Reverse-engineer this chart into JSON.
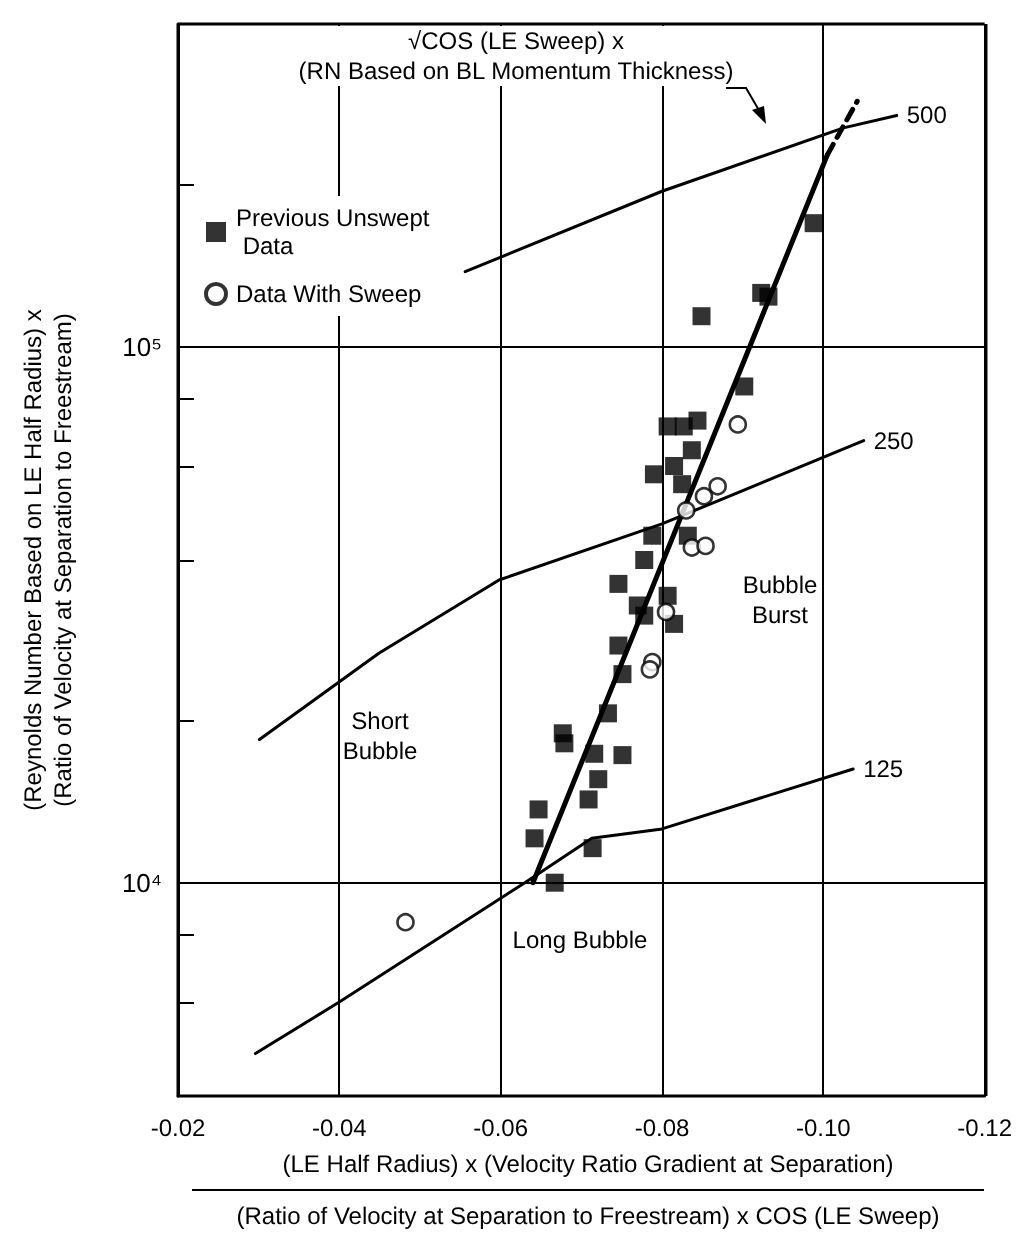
{
  "chart_data": {
    "type": "scatter",
    "xlabel": "(LE Half Radius) x (Velocity Ratio Gradient at Separation)\n(Ratio of Velocity at Separation to Freestream) x COS (LE Sweep)",
    "ylabel": "(Reynolds Number Based on LE Half Radius) x\n(Ratio of Velocity at Separation to Freestream)",
    "annotations": [
      "√COS (LE Sweep) x\n(RN Based on BL Momentum Thickness)",
      "Bubble\nBurst",
      "Short\nBubble",
      "Long Bubble"
    ],
    "xlim": [
      -0.02,
      -0.12
    ],
    "xticks": [
      {
        "value": -0.02,
        "label": "-0.02"
      },
      {
        "value": -0.04,
        "label": "-0.04"
      },
      {
        "value": -0.06,
        "label": "-0.06"
      },
      {
        "value": -0.08,
        "label": "-0.08"
      },
      {
        "value": -0.1,
        "label": "-0.10"
      },
      {
        "value": -0.12,
        "label": "-0.12"
      }
    ],
    "ylim": [
      4000,
      400000
    ],
    "yticks": [
      {
        "value": 6000,
        "label": null
      },
      {
        "value": 8000,
        "label": null
      },
      {
        "value": 10000,
        "label": "10⁴"
      },
      {
        "value": 20000,
        "label": null
      },
      {
        "value": 40000,
        "label": null
      },
      {
        "value": 60000,
        "label": null
      },
      {
        "value": 80000,
        "label": null
      },
      {
        "value": 100000,
        "label": "10⁵"
      },
      {
        "value": 200000,
        "label": null
      }
    ],
    "log": "y",
    "grid": true,
    "legend": "top left",
    "series": [
      {
        "name": "Previous Unswept Data",
        "marker": "square",
        "color": "#000000",
        "x": [
          -0.0849,
          -0.0923,
          -0.0932,
          -0.0988,
          -0.0902,
          -0.0807,
          -0.0827,
          -0.0844,
          -0.0837,
          -0.0815,
          -0.079,
          -0.0825,
          -0.0788,
          -0.0832,
          -0.0778,
          -0.0746,
          -0.0807,
          -0.077,
          -0.0815,
          -0.0778,
          -0.0746,
          -0.0751,
          -0.0733,
          -0.0677,
          -0.0679,
          -0.0716,
          -0.0751,
          -0.0721,
          -0.0709,
          -0.0647,
          -0.0642,
          -0.0714,
          -0.0667
        ],
        "values": [
          114000,
          126000,
          124000,
          170000,
          84300,
          71000,
          71000,
          72800,
          64100,
          59900,
          57800,
          55400,
          44400,
          44400,
          40000,
          36100,
          34300,
          32900,
          30400,
          31500,
          27700,
          24500,
          20700,
          19000,
          18200,
          17400,
          17300,
          15600,
          14300,
          13700,
          12100,
          11600,
          10000
        ]
      },
      {
        "name": "Data With Sweep",
        "marker": "circle",
        "color": "#000000",
        "x": [
          -0.0482,
          -0.0894,
          -0.0869,
          -0.0852,
          -0.083,
          -0.0837,
          -0.0854,
          -0.0805,
          -0.0788,
          -0.0785
        ],
        "values": [
          8440,
          71600,
          54900,
          52600,
          49500,
          42200,
          42500,
          32000,
          25800,
          25000
        ]
      },
      {
        "name": "500",
        "type": "line",
        "marker": "none",
        "color": "#000000",
        "x": [
          -0.0556,
          -0.08,
          -0.1025,
          -0.1091
        ],
        "values": [
          138000,
          195000,
          256000,
          270000
        ]
      },
      {
        "name": "250",
        "type": "line",
        "marker": "none",
        "color": "#000000",
        "x": [
          -0.0301,
          -0.0449,
          -0.0598,
          -0.08,
          -0.105
        ],
        "values": [
          18500,
          26800,
          36700,
          46700,
          66800
        ]
      },
      {
        "name": "125",
        "type": "line",
        "marker": "none",
        "color": "#000000",
        "x": [
          -0.0296,
          -0.04,
          -0.063,
          -0.0713,
          -0.08,
          -0.1037
        ],
        "values": [
          4800,
          5990,
          10000,
          12100,
          12600,
          16300
        ]
      },
      {
        "type": "line",
        "marker": "none",
        "color": "#000000",
        "line_style": "solid",
        "x": [
          -0.064,
          -0.1005
        ],
        "values": [
          10000,
          228000
        ]
      },
      {
        "type": "line",
        "marker": "none",
        "color": "#000000",
        "line_style": "dashed",
        "x": [
          -0.1005,
          -0.1042
        ],
        "values": [
          228000,
          287000
        ]
      }
    ]
  }
}
